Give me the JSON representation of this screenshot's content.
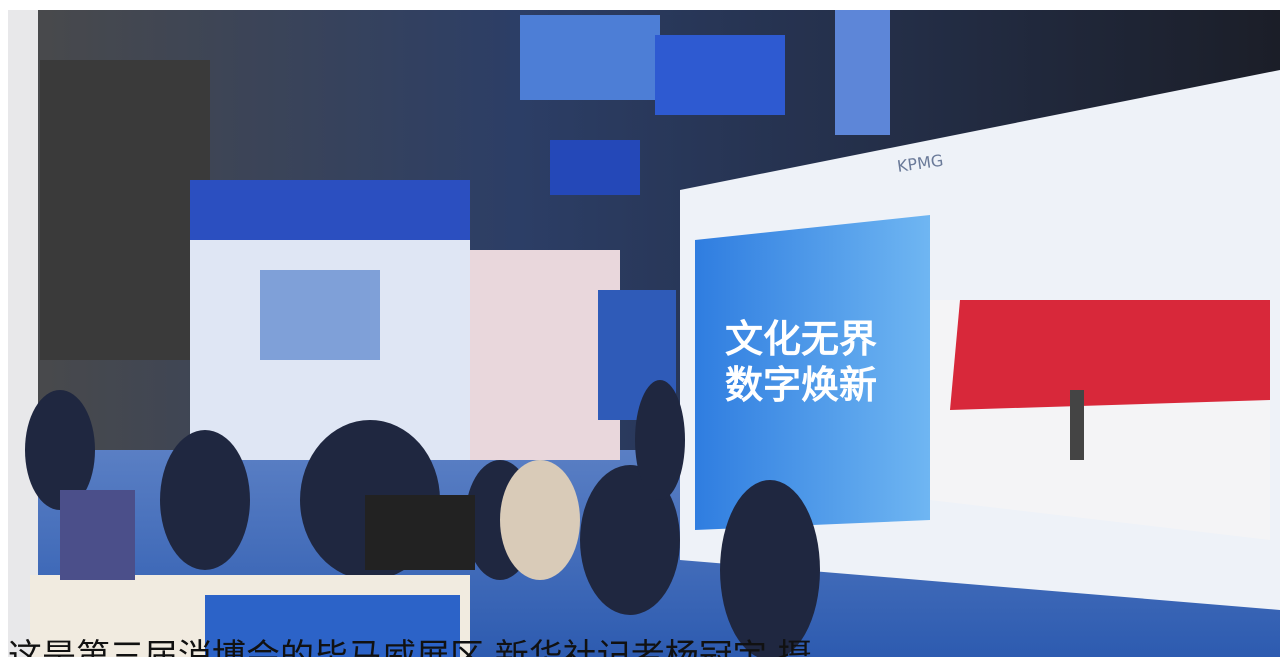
{
  "photo": {
    "sign_logo": "KPMG",
    "screen_line_1": "文化无界",
    "screen_line_2": "数字焕新"
  },
  "caption": "这是第三届消博会的毕马威展区  新华社记者杨冠宇 摄"
}
